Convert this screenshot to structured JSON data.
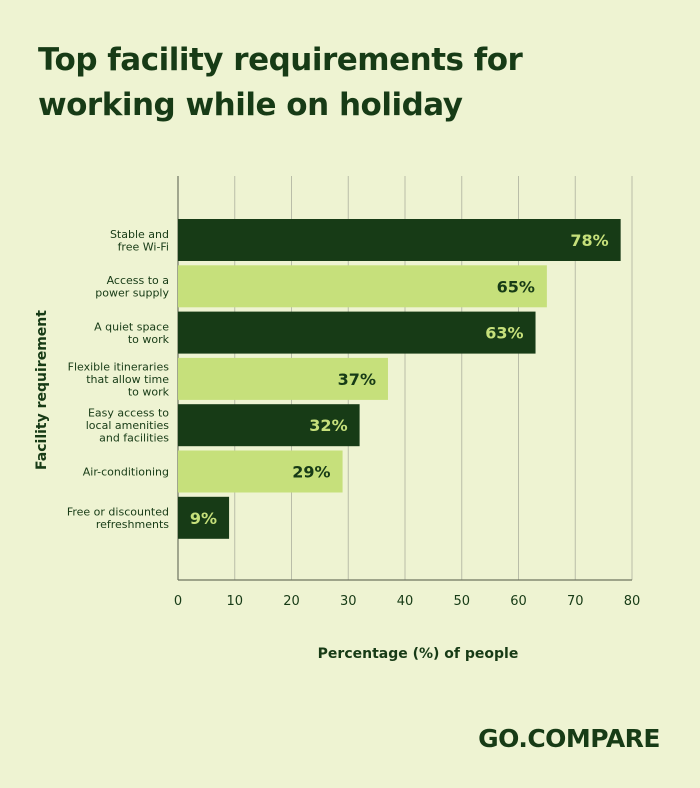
{
  "title_lines": [
    "Top facility requirements for",
    "working while on holiday"
  ],
  "chart_data": {
    "type": "bar",
    "orientation": "horizontal",
    "ylabel": "Facility requirement",
    "xlabel": "Percentage (%) of people",
    "xlim": [
      0,
      80
    ],
    "xticks": [
      0,
      10,
      20,
      30,
      40,
      50,
      60,
      70,
      80
    ],
    "grid": true,
    "categories": [
      [
        "Stable and",
        "free Wi-Fi"
      ],
      [
        "Access to a",
        "power supply"
      ],
      [
        "A quiet space",
        "to work"
      ],
      [
        "Flexible itineraries",
        "that allow time",
        "to work"
      ],
      [
        "Easy access to",
        "local amenities",
        "and facilities"
      ],
      [
        "Air-conditioning"
      ],
      [
        "Free or discounted",
        "refreshments"
      ]
    ],
    "values": [
      78,
      65,
      63,
      37,
      32,
      29,
      9
    ],
    "value_labels": [
      "78%",
      "65%",
      "63%",
      "37%",
      "32%",
      "29%",
      "9%"
    ]
  },
  "colors": {
    "background": "#eef3d2",
    "dark_bar": "#173b16",
    "light_bar": "#c6e07b",
    "gridline": "#b9bda8",
    "axis": "#6e7460"
  },
  "brand": "GO.COMPARE"
}
